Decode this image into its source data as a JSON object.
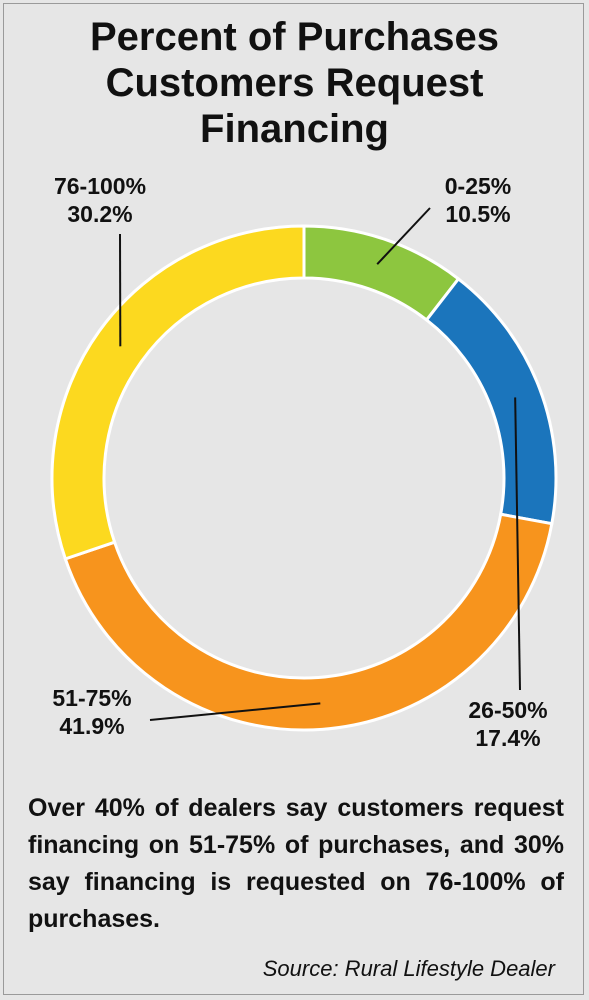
{
  "title_lines": [
    "Percent of Purchases",
    "Customers Request",
    "Financing"
  ],
  "chart_data": {
    "type": "pie",
    "title": "Percent of Purchases Customers Request Financing",
    "donut": true,
    "slices": [
      {
        "label": "0-25%",
        "value": 10.5,
        "value_label": "10.5%",
        "color": "#8dc63f"
      },
      {
        "label": "26-50%",
        "value": 17.4,
        "value_label": "17.4%",
        "color": "#1b75bc"
      },
      {
        "label": "51-75%",
        "value": 41.9,
        "value_label": "41.9%",
        "color": "#f7941d"
      },
      {
        "label": "76-100%",
        "value": 30.2,
        "value_label": "30.2%",
        "color": "#fcd91f"
      }
    ]
  },
  "caption": "Over 40% of dealers say customers request financing on 51-75% of purchases, and 30% say financing is requested on 76-100% of purchases.",
  "source": "Source: Rural Lifestyle Dealer"
}
